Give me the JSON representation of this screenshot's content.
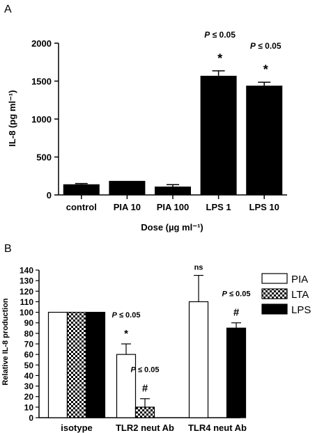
{
  "chart_data": [
    {
      "panel": "A",
      "type": "bar",
      "categories": [
        "control",
        "PIA 10",
        "PIA 100",
        "LPS 1",
        "LPS 10"
      ],
      "values": [
        140,
        185,
        110,
        1570,
        1440
      ],
      "errors": [
        10,
        0,
        25,
        65,
        45
      ],
      "annotations": [
        {
          "category": "LPS 1",
          "lines": [
            "P ≤ 0.05",
            "*"
          ]
        },
        {
          "category": "LPS 10",
          "lines": [
            "P ≤ 0.05",
            "*"
          ]
        }
      ],
      "xlabel": "Dose (µg ml⁻¹)",
      "ylabel": "IL-8 (pg ml⁻¹)",
      "ylim": [
        0,
        2000
      ],
      "yticks": [
        "0",
        "500",
        "1000",
        "1500",
        "2000"
      ],
      "bar_color": "#000000"
    },
    {
      "panel": "B",
      "type": "bar",
      "categories": [
        "isotype",
        "TLR2 neut Ab",
        "TLR4 neut Ab"
      ],
      "series": [
        {
          "name": "PIA",
          "values": [
            100,
            60,
            110
          ],
          "errors": [
            0,
            10,
            25
          ],
          "fill": "white"
        },
        {
          "name": "LTA",
          "values": [
            100,
            10,
            null
          ],
          "errors": [
            0,
            8,
            null
          ],
          "fill": "checker"
        },
        {
          "name": "LPS",
          "values": [
            100,
            null,
            85
          ],
          "errors": [
            0,
            null,
            5
          ],
          "fill": "black"
        }
      ],
      "annotations": [
        {
          "category": "TLR2 neut Ab",
          "series": "PIA",
          "lines": [
            "P ≤ 0.05",
            "*"
          ]
        },
        {
          "category": "TLR2 neut Ab",
          "series": "LTA",
          "lines": [
            "P ≤ 0.05",
            "#"
          ]
        },
        {
          "category": "TLR4 neut Ab",
          "series": "PIA",
          "lines": [
            "ns"
          ]
        },
        {
          "category": "TLR4 neut Ab",
          "series": "LPS",
          "lines": [
            "P ≤ 0.05",
            "#"
          ]
        }
      ],
      "ylabel": "Relative IL-8 production",
      "ylim": [
        0,
        140
      ],
      "yticks": [
        "0",
        "10",
        "20",
        "30",
        "40",
        "50",
        "60",
        "70",
        "80",
        "90",
        "100",
        "110",
        "120",
        "130",
        "140"
      ],
      "legend_placement": "top-right"
    }
  ],
  "panels": {
    "a_label": "A",
    "b_label": "B"
  }
}
